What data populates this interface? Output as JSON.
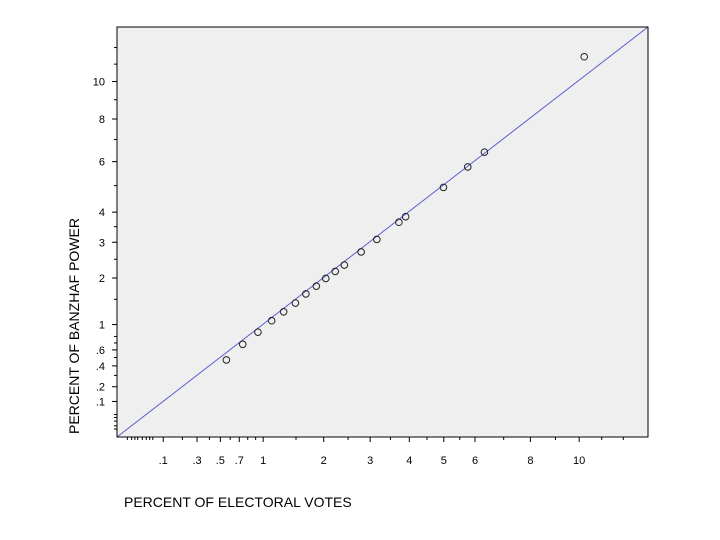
{
  "chart_data": {
    "type": "scatter",
    "title": "",
    "xlabel": "PERCENT OF ELECTORAL VOTES",
    "ylabel": "PERCENT OF BANZHAF POWER",
    "x_scale": "sqrt",
    "y_scale": "sqrt",
    "xlim": [
      0,
      13.2
    ],
    "ylim": [
      0,
      13.3
    ],
    "grid": false,
    "legend": "none",
    "x_ticks": [
      {
        "v": 0.1,
        "label": ".1"
      },
      {
        "v": 0.3,
        "label": ".3"
      },
      {
        "v": 0.5,
        "label": ".5"
      },
      {
        "v": 0.7,
        "label": ".7"
      },
      {
        "v": 1,
        "label": "1"
      },
      {
        "v": 2,
        "label": "2"
      },
      {
        "v": 3,
        "label": "3"
      },
      {
        "v": 4,
        "label": "4"
      },
      {
        "v": 5,
        "label": "5"
      },
      {
        "v": 6,
        "label": "6"
      },
      {
        "v": 8,
        "label": "8"
      },
      {
        "v": 10,
        "label": "10"
      }
    ],
    "y_ticks": [
      {
        "v": 0.1,
        "label": ".1"
      },
      {
        "v": 0.2,
        "label": ".2"
      },
      {
        "v": 0.4,
        "label": ".4"
      },
      {
        "v": 0.6,
        "label": ".6"
      },
      {
        "v": 1,
        "label": "1"
      },
      {
        "v": 2,
        "label": "2"
      },
      {
        "v": 3,
        "label": "3"
      },
      {
        "v": 4,
        "label": "4"
      },
      {
        "v": 6,
        "label": "6"
      },
      {
        "v": 8,
        "label": "8"
      },
      {
        "v": 10,
        "label": "10"
      }
    ],
    "x_minor_ticks": [
      0.2,
      0.4,
      0.6,
      0.8,
      0.9,
      1.5,
      2.5,
      3.5,
      4.5,
      5.5,
      7,
      9,
      11,
      12
    ],
    "y_minor_ticks": [
      0.3,
      0.5,
      0.7,
      0.8,
      1.5,
      2.5,
      3.5,
      5,
      7,
      9,
      11,
      12
    ],
    "x_tick_cluster": [
      0.005,
      0.01,
      0.015,
      0.02,
      0.03,
      0.04,
      0.05,
      0.06
    ],
    "y_tick_cluster": [
      0.005,
      0.01,
      0.02,
      0.03,
      0.04
    ],
    "reference_line": {
      "from": [
        0,
        0
      ],
      "to": [
        13.2,
        13.3
      ],
      "color": "#5a5fd0"
    },
    "series": [
      {
        "marker": "open-circle",
        "points": [
          {
            "x": 0.56,
            "y": 0.47
          },
          {
            "x": 0.74,
            "y": 0.68
          },
          {
            "x": 0.93,
            "y": 0.87
          },
          {
            "x": 1.12,
            "y": 1.07
          },
          {
            "x": 1.3,
            "y": 1.24
          },
          {
            "x": 1.49,
            "y": 1.42
          },
          {
            "x": 1.67,
            "y": 1.62
          },
          {
            "x": 1.86,
            "y": 1.8
          },
          {
            "x": 2.04,
            "y": 1.99
          },
          {
            "x": 2.23,
            "y": 2.17
          },
          {
            "x": 2.42,
            "y": 2.34
          },
          {
            "x": 2.79,
            "y": 2.71
          },
          {
            "x": 3.16,
            "y": 3.09
          },
          {
            "x": 3.72,
            "y": 3.65
          },
          {
            "x": 3.9,
            "y": 3.84
          },
          {
            "x": 4.99,
            "y": 4.93
          },
          {
            "x": 5.76,
            "y": 5.77
          },
          {
            "x": 6.32,
            "y": 6.42
          },
          {
            "x": 10.22,
            "y": 11.44
          }
        ]
      }
    ]
  },
  "colors": {
    "plot_background": "#efefef",
    "frame": "#000000",
    "marker_stroke": "#222222",
    "reference_line": "#5a5fd0"
  }
}
